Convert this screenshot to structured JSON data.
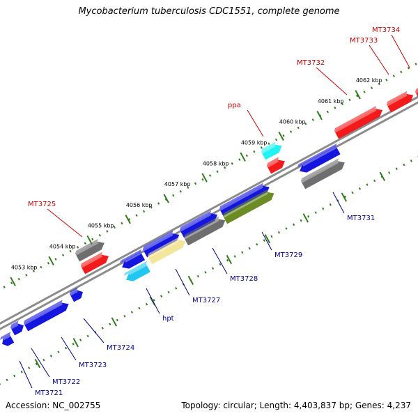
{
  "title": "Mycobacterium tuberculosis CDC1551, complete genome",
  "accession_text": "Accession: NC_002755",
  "summary_text": "Topology: circular; Length: 4,403,837 bp; Genes: 4,237",
  "colors": {
    "backbone": "#8c8c8c",
    "tick": "#2e7d1a",
    "label_red": "#cc0000",
    "label_blue": "#00008b",
    "leader": "#000000",
    "blue": "#1515e0",
    "red": "#f21a1a",
    "gray": "#6e6e6e",
    "cyan": "#1ec8f0",
    "aqua": "#22f2f2",
    "cream": "#f2e69a",
    "olive": "#6b8c23"
  },
  "scale_labels": [
    "4053 kbp",
    "4054 kbp",
    "4055 kbp",
    "4056 kbp",
    "4057 kbp",
    "4058 kbp",
    "4059 kbp",
    "4060 kbp",
    "4061 kbp",
    "4062 kbp"
  ],
  "features": [
    {
      "name": "MT3721",
      "color": "blue"
    },
    {
      "name": "MT3722",
      "color": "blue"
    },
    {
      "name": "MT3723",
      "color": "blue"
    },
    {
      "name": "MT3724",
      "color": "blue"
    },
    {
      "name": "hpt",
      "color": "cyan"
    },
    {
      "name": "MT3727",
      "color": "cream"
    },
    {
      "name": "MT3728",
      "color": "gray"
    },
    {
      "name": "MT3729",
      "color": "olive"
    },
    {
      "name": "MT3731",
      "color": "gray"
    },
    {
      "name": "MT3725",
      "color": "gray"
    },
    {
      "name": "ppa",
      "color": "aqua"
    },
    {
      "name": "MT3732",
      "color": "red"
    },
    {
      "name": "MT3733",
      "color": "red"
    },
    {
      "name": "MT3734",
      "color": "red"
    }
  ]
}
